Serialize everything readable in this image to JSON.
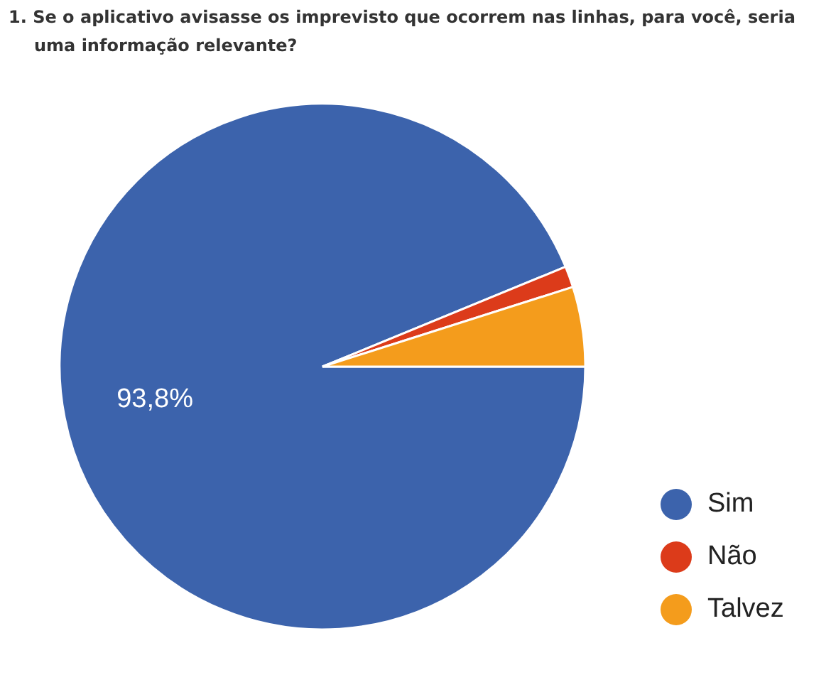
{
  "chart_data": {
    "type": "pie",
    "title": "1. Se o aplicativo avisasse os imprevisto que ocorrem nas linhas, para você, seria uma informação relevante?",
    "categories": [
      "Sim",
      "Não",
      "Talvez"
    ],
    "values": [
      93.8,
      1.3,
      4.9
    ],
    "colors": [
      "#3c63ac",
      "#dc3b1a",
      "#f49c1c"
    ],
    "value_labels": [
      "93,8%",
      null,
      null
    ],
    "legend": "bottom right"
  }
}
